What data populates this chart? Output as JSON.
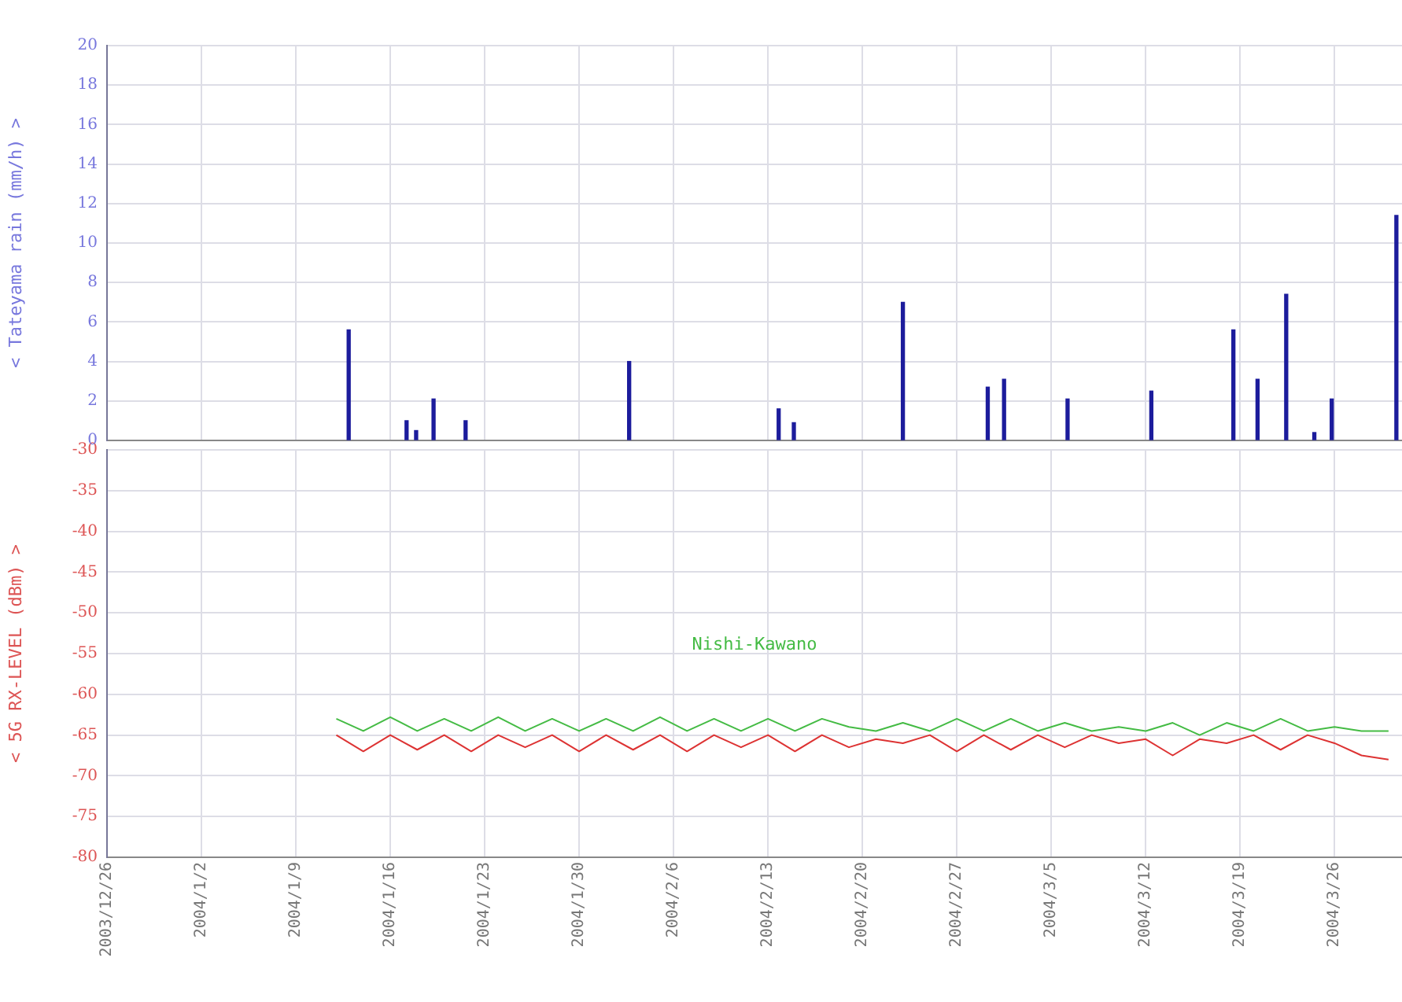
{
  "chart_data": [
    {
      "type": "bar",
      "ylabel": "< Tateyama rain (mm/h) >",
      "xlim": [
        "2003-12-26",
        "2004-03-31"
      ],
      "xticks": [
        {
          "value": "2003-12-26",
          "label": null
        },
        {
          "value": "2004-01-02",
          "label": null
        },
        {
          "value": "2004-01-09",
          "label": null
        },
        {
          "value": "2004-01-16",
          "label": null
        },
        {
          "value": "2004-01-23",
          "label": null
        },
        {
          "value": "2004-01-30",
          "label": null
        },
        {
          "value": "2004-02-06",
          "label": null
        },
        {
          "value": "2004-02-13",
          "label": null
        },
        {
          "value": "2004-02-20",
          "label": null
        },
        {
          "value": "2004-02-27",
          "label": null
        },
        {
          "value": "2004-03-05",
          "label": null
        },
        {
          "value": "2004-03-12",
          "label": null
        },
        {
          "value": "2004-03-19",
          "label": null
        },
        {
          "value": "2004-03-26",
          "label": null
        }
      ],
      "ylim": [
        0,
        20
      ],
      "yticks": [
        0,
        2,
        4,
        6,
        8,
        10,
        12,
        14,
        16,
        18,
        20
      ],
      "grid": true,
      "tick_labels": "y",
      "series": [
        {
          "color": "#1c1c9c",
          "x": [
            "2004-01-12T22:00",
            "2004-01-17T05:00",
            "2004-01-17T22:00",
            "2004-01-19T05:00",
            "2004-01-21T14:00",
            "2004-02-02T17:00",
            "2004-02-13T19:00",
            "2004-02-14T22:00",
            "2004-02-23T00:00",
            "2004-02-29T07:00",
            "2004-03-01T12:00",
            "2004-03-06T05:00",
            "2004-03-12T10:00",
            "2004-03-18T12:00",
            "2004-03-20T07:00",
            "2004-03-22T10:00",
            "2004-03-24T12:00",
            "2004-03-25T19:00",
            "2004-03-30T14:00"
          ],
          "values": [
            5.6,
            1.0,
            0.5,
            2.1,
            1.0,
            4.0,
            1.6,
            0.9,
            7.0,
            2.7,
            3.1,
            2.1,
            2.5,
            5.6,
            3.1,
            7.4,
            0.4,
            2.1,
            11.4
          ]
        }
      ]
    },
    {
      "type": "line",
      "ylabel": "< 5G RX-LEVEL (dBm) >",
      "xlim": [
        "2003-12-26",
        "2004-03-31"
      ],
      "xticks": [
        {
          "value": "2003-12-26",
          "label": "2003/12/26"
        },
        {
          "value": "2004-01-02",
          "label": "2004/1/2"
        },
        {
          "value": "2004-01-09",
          "label": "2004/1/9"
        },
        {
          "value": "2004-01-16",
          "label": "2004/1/16"
        },
        {
          "value": "2004-01-23",
          "label": "2004/1/23"
        },
        {
          "value": "2004-01-30",
          "label": "2004/1/30"
        },
        {
          "value": "2004-02-06",
          "label": "2004/2/6"
        },
        {
          "value": "2004-02-13",
          "label": "2004/2/13"
        },
        {
          "value": "2004-02-20",
          "label": "2004/2/20"
        },
        {
          "value": "2004-02-27",
          "label": "2004/2/27"
        },
        {
          "value": "2004-03-05",
          "label": "2004/3/5"
        },
        {
          "value": "2004-03-12",
          "label": "2004/3/12"
        },
        {
          "value": "2004-03-19",
          "label": "2004/3/19"
        },
        {
          "value": "2004-03-26",
          "label": "2004/3/26"
        }
      ],
      "ylim": [
        -80,
        -30
      ],
      "yticks": [
        -80,
        -75,
        -70,
        -65,
        -60,
        -55,
        -50,
        -45,
        -40,
        -35,
        -30
      ],
      "grid": true,
      "legend": "center",
      "marker": "none",
      "x": [
        "2004-01-12",
        "2004-01-14",
        "2004-01-16",
        "2004-01-18",
        "2004-01-20",
        "2004-01-22",
        "2004-01-24",
        "2004-01-26",
        "2004-01-28",
        "2004-01-30",
        "2004-02-01",
        "2004-02-03",
        "2004-02-05",
        "2004-02-07",
        "2004-02-09",
        "2004-02-11",
        "2004-02-13",
        "2004-02-15",
        "2004-02-17",
        "2004-02-19",
        "2004-02-21",
        "2004-02-23",
        "2004-02-25",
        "2004-02-27",
        "2004-02-29",
        "2004-03-02",
        "2004-03-04",
        "2004-03-06",
        "2004-03-08",
        "2004-03-10",
        "2004-03-12",
        "2004-03-14",
        "2004-03-16",
        "2004-03-18",
        "2004-03-20",
        "2004-03-22",
        "2004-03-24",
        "2004-03-26",
        "2004-03-28",
        "2004-03-30"
      ],
      "series": [
        {
          "name": "Nishi-Kawano",
          "color": "#44bb44",
          "values": [
            -63,
            -64.5,
            -62.8,
            -64.5,
            -63,
            -64.5,
            -62.8,
            -64.5,
            -63,
            -64.5,
            -63,
            -64.5,
            -62.8,
            -64.5,
            -63,
            -64.5,
            -63,
            -64.5,
            -63,
            -64,
            -64.5,
            -63.5,
            -64.5,
            -63,
            -64.5,
            -63,
            -64.5,
            -63.5,
            -64.5,
            -64,
            -64.5,
            -63.5,
            -65,
            -63.5,
            -64.5,
            -63,
            -64.5,
            -64,
            -64.5,
            -64.5
          ]
        },
        {
          "color": "#dd3333",
          "values": [
            -65,
            -67,
            -65,
            -66.8,
            -65,
            -67,
            -65,
            -66.5,
            -65,
            -67,
            -65,
            -66.8,
            -65,
            -67,
            -65,
            -66.5,
            -65,
            -67,
            -65,
            -66.5,
            -65.5,
            -66,
            -65,
            -67,
            -65,
            -66.8,
            -65,
            -66.5,
            -65,
            -66,
            -65.5,
            -67.5,
            -65.5,
            -66,
            -65,
            -66.8,
            -65,
            -66,
            -67.5,
            -68
          ]
        }
      ]
    }
  ]
}
